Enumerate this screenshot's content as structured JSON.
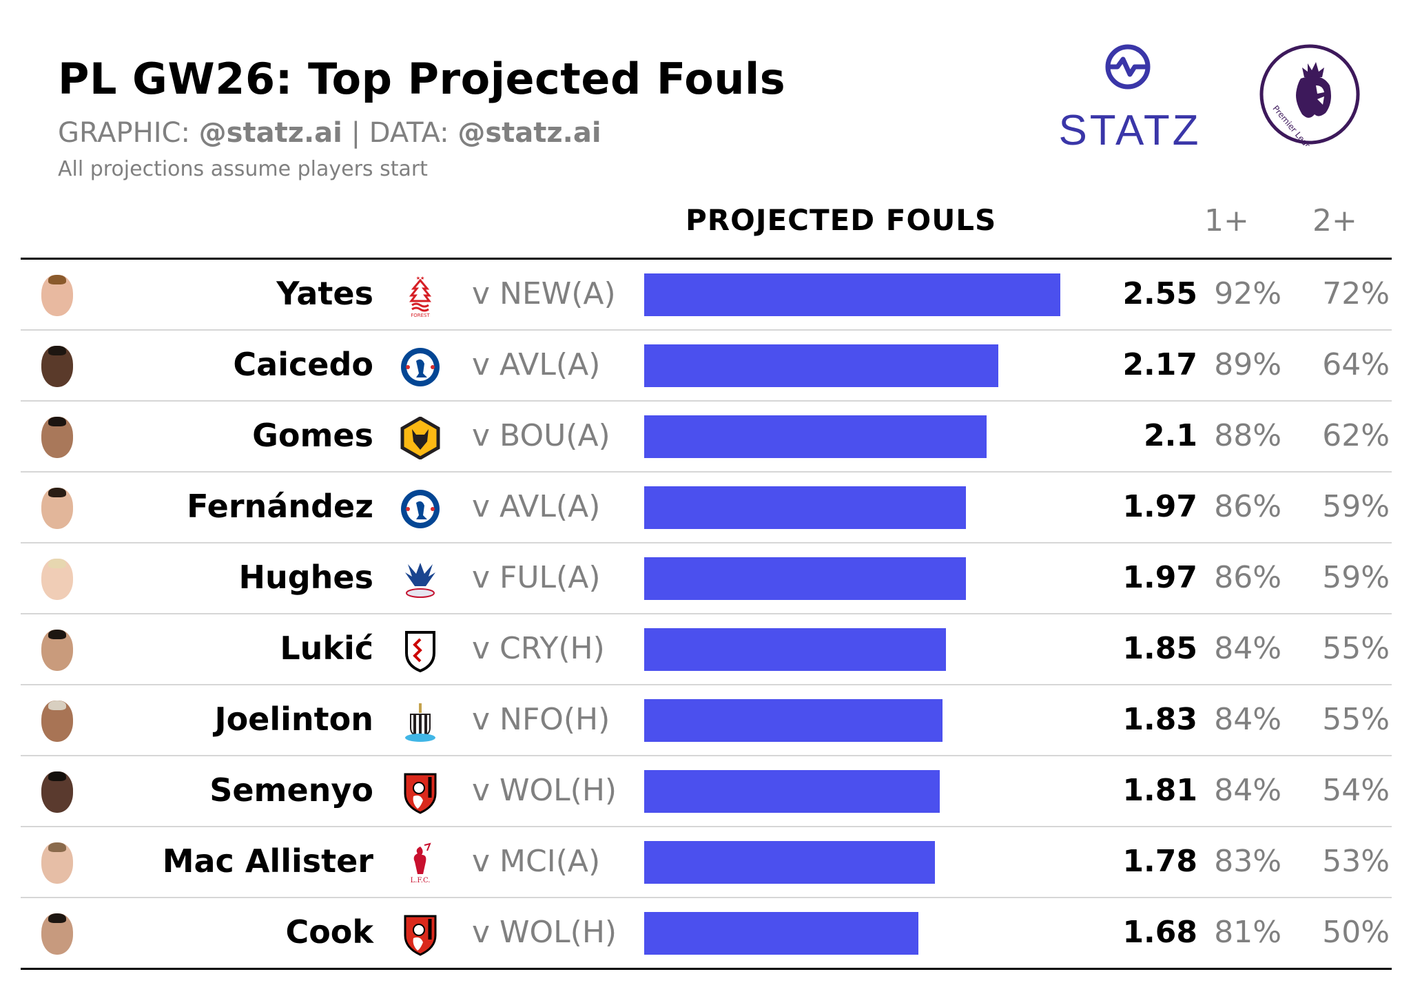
{
  "header": {
    "title": "PL GW26: Top Projected Fouls",
    "credits_graphic_label": "GRAPHIC: ",
    "credits_graphic_handle": "@statz.ai",
    "credits_separator": " | ",
    "credits_data_label": "DATA: ",
    "credits_data_handle": "@statz.ai",
    "note": "All projections assume players start"
  },
  "logos": {
    "statz_word": "STATZ",
    "statz_icon": "pulse-circle-icon",
    "pl_icon": "premier-league-lion-icon",
    "pl_text": "Premier League"
  },
  "columns": {
    "projected": "PROJECTED FOULS",
    "p1": "1+",
    "p2": "2+"
  },
  "colors": {
    "bar": "#4b50ee",
    "muted": "#808080",
    "statz": "#3a36a8",
    "pl": "#3d195b"
  },
  "rows": [
    {
      "player": "Yates",
      "team_icon": "nottingham-forest-crest-icon",
      "opponent": "v NEW(A)",
      "fouls": "2.55",
      "p1": "92%",
      "p2": "72%"
    },
    {
      "player": "Caicedo",
      "team_icon": "chelsea-crest-icon",
      "opponent": "v AVL(A)",
      "fouls": "2.17",
      "p1": "89%",
      "p2": "64%"
    },
    {
      "player": "Gomes",
      "team_icon": "wolves-crest-icon",
      "opponent": "v BOU(A)",
      "fouls": "2.1",
      "p1": "88%",
      "p2": "62%"
    },
    {
      "player": "Fernández",
      "team_icon": "chelsea-crest-icon",
      "opponent": "v AVL(A)",
      "fouls": "1.97",
      "p1": "86%",
      "p2": "59%"
    },
    {
      "player": "Hughes",
      "team_icon": "crystal-palace-crest-icon",
      "opponent": "v FUL(A)",
      "fouls": "1.97",
      "p1": "86%",
      "p2": "59%"
    },
    {
      "player": "Lukić",
      "team_icon": "fulham-crest-icon",
      "opponent": "v CRY(H)",
      "fouls": "1.85",
      "p1": "84%",
      "p2": "55%"
    },
    {
      "player": "Joelinton",
      "team_icon": "newcastle-crest-icon",
      "opponent": "v NFO(H)",
      "fouls": "1.83",
      "p1": "84%",
      "p2": "55%"
    },
    {
      "player": "Semenyo",
      "team_icon": "bournemouth-crest-icon",
      "opponent": "v WOL(H)",
      "fouls": "1.81",
      "p1": "84%",
      "p2": "54%"
    },
    {
      "player": "Mac Allister",
      "team_icon": "liverpool-crest-icon",
      "opponent": "v MCI(A)",
      "fouls": "1.78",
      "p1": "83%",
      "p2": "53%"
    },
    {
      "player": "Cook",
      "team_icon": "bournemouth-crest-icon",
      "opponent": "v WOL(H)",
      "fouls": "1.68",
      "p1": "81%",
      "p2": "50%"
    }
  ],
  "chart_data": {
    "type": "bar",
    "orientation": "horizontal",
    "title": "PL GW26: Top Projected Fouls",
    "subtitle": "GRAPHIC: @statz.ai | DATA: @statz.ai",
    "note": "All projections assume players start",
    "categories": [
      "Yates",
      "Caicedo",
      "Gomes",
      "Fernández",
      "Hughes",
      "Lukić",
      "Joelinton",
      "Semenyo",
      "Mac Allister",
      "Cook"
    ],
    "series": [
      {
        "name": "PROJECTED FOULS",
        "values": [
          2.55,
          2.17,
          2.1,
          1.97,
          1.97,
          1.85,
          1.83,
          1.81,
          1.78,
          1.68
        ]
      },
      {
        "name": "1+",
        "values": [
          92,
          89,
          88,
          86,
          86,
          84,
          84,
          84,
          83,
          81
        ],
        "unit": "%"
      },
      {
        "name": "2+",
        "values": [
          72,
          64,
          62,
          59,
          59,
          55,
          55,
          54,
          53,
          50
        ],
        "unit": "%"
      }
    ],
    "opponents": [
      "v NEW(A)",
      "v AVL(A)",
      "v BOU(A)",
      "v AVL(A)",
      "v FUL(A)",
      "v CRY(H)",
      "v NFO(H)",
      "v WOL(H)",
      "v MCI(A)",
      "v WOL(H)"
    ],
    "xlabel": "",
    "ylabel": "",
    "grid": false,
    "legend": "none"
  }
}
